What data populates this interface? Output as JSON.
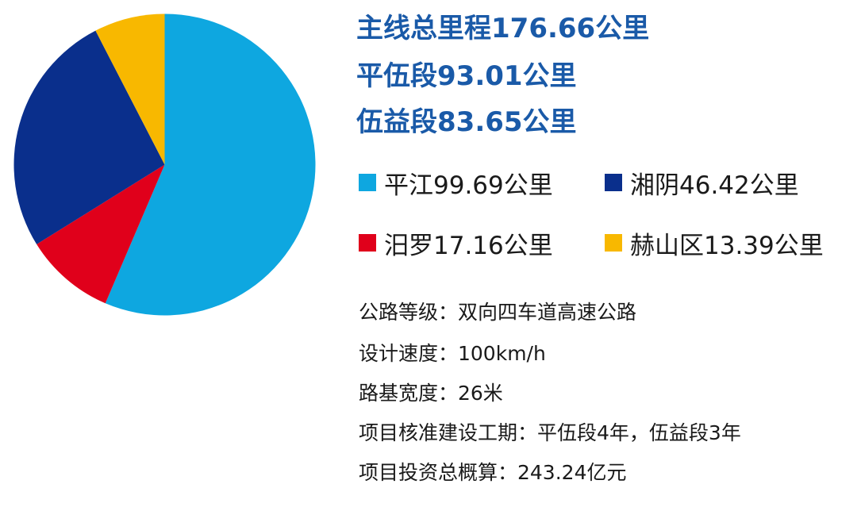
{
  "headlines": {
    "total": "主线总里程176.66公里",
    "seg1": "平伍段93.01公里",
    "seg2": "伍益段83.65公里"
  },
  "chart_data": {
    "type": "pie",
    "title": "",
    "unit": "公里",
    "legend_position": "right",
    "slices": [
      {
        "label": "平江99.69公里",
        "name": "平江",
        "value": 99.69,
        "color": "#0ea7e0"
      },
      {
        "label": "汨罗17.16公里",
        "name": "汨罗",
        "value": 17.16,
        "color": "#e0001b"
      },
      {
        "label": "湘阴46.42公里",
        "name": "湘阴",
        "value": 46.42,
        "color": "#0a2f8c"
      },
      {
        "label": "赫山区13.39公里",
        "name": "赫山区",
        "value": 13.39,
        "color": "#f8b800"
      }
    ]
  },
  "specs": {
    "grade": "公路等级：双向四车道高速公路",
    "speed": "设计速度：100km/h",
    "width": "路基宽度：26米",
    "period": "项目核准建设工期：平伍段4年，伍益段3年",
    "investment": "项目投资总概算：243.24亿元"
  }
}
